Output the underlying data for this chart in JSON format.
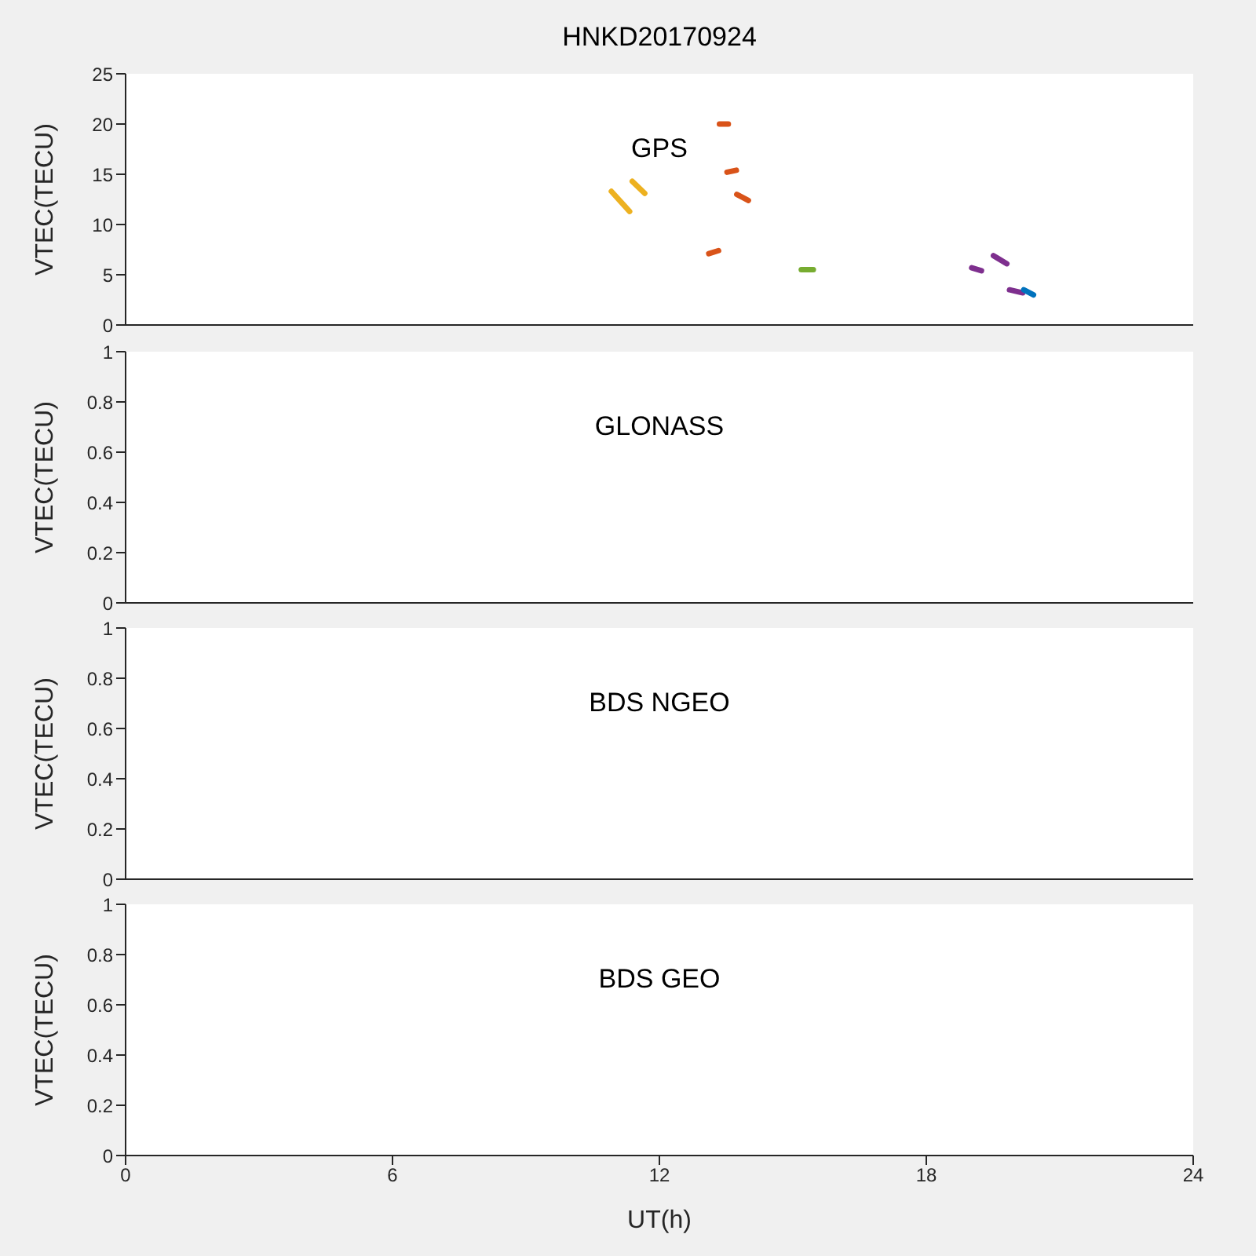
{
  "chart_data": [
    {
      "type": "line",
      "title": "HNKD20170924",
      "annotations": [
        "GPS"
      ],
      "ylabel": "VTEC(TECU)",
      "xlim": [
        0,
        24
      ],
      "xticks": [
        0,
        6,
        12,
        18,
        24
      ],
      "ylim": [
        0,
        25
      ],
      "yticks": [
        0,
        5,
        10,
        15,
        20,
        25
      ],
      "tick_labels": "y",
      "series": [
        {
          "color": "#edb120",
          "x": [
            10.92,
            11.33
          ],
          "values": [
            13.3,
            11.3
          ]
        },
        {
          "color": "#edb120",
          "x": [
            11.39,
            11.67
          ],
          "values": [
            14.3,
            13.1
          ]
        },
        {
          "color": "#d95319",
          "x": [
            13.35,
            13.55
          ],
          "values": [
            20.0,
            20.0
          ]
        },
        {
          "color": "#d95319",
          "x": [
            13.52,
            13.73
          ],
          "values": [
            15.2,
            15.4
          ]
        },
        {
          "color": "#d95319",
          "x": [
            13.74,
            14.0
          ],
          "values": [
            13.0,
            12.4
          ]
        },
        {
          "color": "#d95319",
          "x": [
            13.11,
            13.33
          ],
          "values": [
            7.1,
            7.4
          ]
        },
        {
          "color": "#77ac30",
          "x": [
            15.19,
            15.46
          ],
          "values": [
            5.5,
            5.5
          ]
        },
        {
          "color": "#7e2f8e",
          "x": [
            19.02,
            19.24
          ],
          "values": [
            5.7,
            5.4
          ]
        },
        {
          "color": "#7e2f8e",
          "x": [
            19.51,
            19.81
          ],
          "values": [
            6.9,
            6.1
          ]
        },
        {
          "color": "#7e2f8e",
          "x": [
            19.87,
            20.17
          ],
          "values": [
            3.5,
            3.2
          ]
        },
        {
          "color": "#0072bd",
          "x": [
            20.19,
            20.41
          ],
          "values": [
            3.5,
            3.0
          ]
        }
      ]
    },
    {
      "type": "line",
      "annotations": [
        "GLONASS"
      ],
      "ylabel": "VTEC(TECU)",
      "xlim": [
        0,
        24
      ],
      "xticks": [
        0,
        6,
        12,
        18,
        24
      ],
      "ylim": [
        0,
        1
      ],
      "yticks": [
        0,
        0.2,
        0.4,
        0.6,
        0.8,
        1
      ],
      "tick_labels": "y"
    },
    {
      "type": "line",
      "annotations": [
        "BDS NGEO"
      ],
      "ylabel": "VTEC(TECU)",
      "xlim": [
        0,
        24
      ],
      "xticks": [
        0,
        6,
        12,
        18,
        24
      ],
      "ylim": [
        0,
        1
      ],
      "yticks": [
        0,
        0.2,
        0.4,
        0.6,
        0.8,
        1
      ],
      "tick_labels": "y"
    },
    {
      "type": "line",
      "annotations": [
        "BDS GEO"
      ],
      "xlabel": "UT(h)",
      "ylabel": "VTEC(TECU)",
      "xlim": [
        0,
        24
      ],
      "xticks": [
        0,
        6,
        12,
        18,
        24
      ],
      "ylim": [
        0,
        1
      ],
      "yticks": [
        0,
        0.2,
        0.4,
        0.6,
        0.8,
        1
      ]
    }
  ]
}
